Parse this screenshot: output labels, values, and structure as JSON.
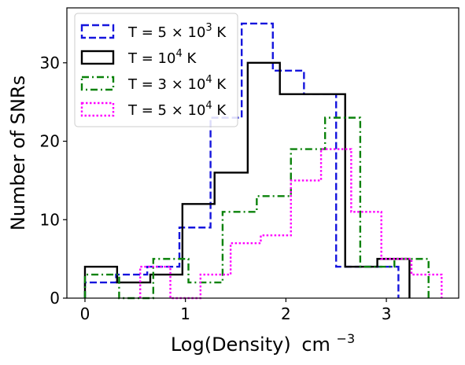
{
  "chart_data": {
    "type": "histogram-step",
    "xlabel_main": "Log(Density)",
    "xlabel_unit": "cm",
    "xlabel_exp": "−3",
    "ylabel": "Number of SNRs",
    "xlim": [
      -0.18,
      3.72
    ],
    "ylim": [
      0,
      37
    ],
    "xticks": [
      0,
      1,
      2,
      3
    ],
    "yticks": [
      0,
      10,
      20,
      30
    ],
    "grid": false,
    "legend_position": "upper-left",
    "series": [
      {
        "legend_parts": [
          "T = 5 × 10",
          "3",
          " K"
        ],
        "color": "#1515dd",
        "dash": "dashed",
        "edges": [
          0,
          0.31,
          0.62,
          0.94,
          1.25,
          1.56,
          1.87,
          2.18,
          2.5,
          2.81,
          3.12
        ],
        "counts": [
          2,
          3,
          4,
          9,
          23,
          35,
          29,
          26,
          4,
          4
        ]
      },
      {
        "legend_parts": [
          "T = 10",
          "4",
          " K"
        ],
        "color": "#000000",
        "dash": "solid",
        "edges": [
          0,
          0.32,
          0.65,
          0.97,
          1.29,
          1.62,
          1.94,
          2.26,
          2.59,
          2.91,
          3.23
        ],
        "counts": [
          4,
          2,
          3,
          12,
          16,
          30,
          26,
          26,
          4,
          5
        ]
      },
      {
        "legend_parts": [
          "T = 3 × 10",
          "4",
          " K"
        ],
        "color": "#0a820a",
        "dash": "dashdot",
        "edges": [
          0,
          0.34,
          0.68,
          1.03,
          1.37,
          1.71,
          2.05,
          2.39,
          2.74,
          3.08,
          3.42
        ],
        "counts": [
          3,
          0,
          5,
          2,
          11,
          13,
          19,
          23,
          4,
          5
        ]
      },
      {
        "legend_parts": [
          "T = 5 × 10",
          "4",
          " K"
        ],
        "color": "#ff00ff",
        "dash": "dotted",
        "edges": [
          0.55,
          0.85,
          1.15,
          1.45,
          1.75,
          2.05,
          2.35,
          2.65,
          2.95,
          3.25,
          3.55
        ],
        "counts": [
          4,
          0,
          3,
          7,
          8,
          15,
          19,
          11,
          5,
          3
        ]
      }
    ]
  }
}
